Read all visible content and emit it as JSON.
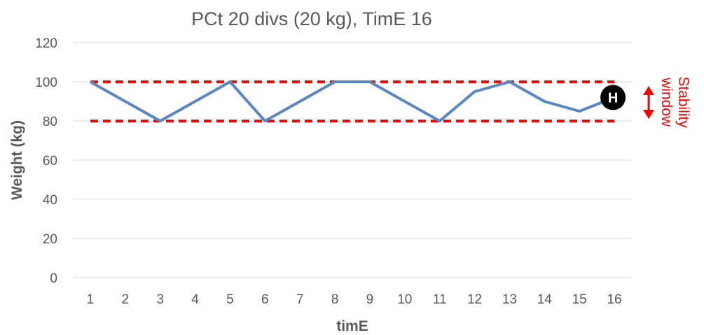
{
  "chart_data": {
    "type": "line",
    "title": "PCt 20 divs (20 kg), TimE 16",
    "xlabel": "timE",
    "ylabel": "Weight (kg)",
    "ylim": [
      0,
      120
    ],
    "yticks": [
      0,
      20,
      40,
      60,
      80,
      100,
      120
    ],
    "categories": [
      "1",
      "2",
      "3",
      "4",
      "5",
      "6",
      "7",
      "8",
      "9",
      "10",
      "11",
      "12",
      "13",
      "14",
      "15",
      "16"
    ],
    "series": [
      {
        "values": [
          100,
          90,
          80,
          90,
          100,
          80,
          90,
          100,
          100,
          90,
          80,
          95,
          100,
          90,
          85,
          92
        ]
      }
    ],
    "grid": "horizontal",
    "stability_window": {
      "lower": 80,
      "upper": 100,
      "label": "Stability window"
    },
    "marker": {
      "x": 16,
      "y": 92,
      "label": "H"
    },
    "colors": {
      "series": "#5b87c0",
      "window": "#ff0000",
      "grid": "#d9d9d9",
      "text": "#595959",
      "marker": "#000000"
    }
  }
}
